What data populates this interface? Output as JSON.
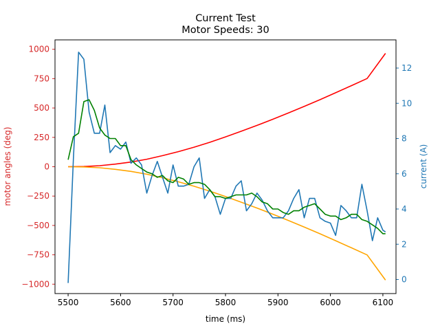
{
  "chart_data": {
    "type": "line",
    "title": "Current Test",
    "subtitle": "Motor Speeds: 30",
    "xlabel": "time (ms)",
    "ylabel_left": "motor angles (deg)",
    "ylabel_right": "current (A)",
    "xlim": [
      5475,
      6125
    ],
    "ylim_left": [
      -1080,
      1080
    ],
    "ylim_right": [
      -0.8,
      13.6
    ],
    "x_ticks": [
      5500,
      5600,
      5700,
      5800,
      5900,
      6000,
      6100
    ],
    "y_left_ticks": [
      -1000,
      -750,
      -500,
      -250,
      0,
      250,
      500,
      750,
      1000
    ],
    "y_right_ticks": [
      0,
      2,
      4,
      6,
      8,
      10,
      12
    ],
    "grid": false,
    "colors": {
      "left_axis": "#d62728",
      "right_axis": "#1f77b4",
      "angle_pos": "#ff0000",
      "angle_neg": "#ffa500",
      "current_raw": "#1f77b4",
      "current_smooth": "#008000"
    },
    "series": [
      {
        "key": "angle_pos",
        "axis": "left",
        "x": [
          5500,
          5530,
          5560,
          5590,
          5620,
          5650,
          5680,
          5710,
          5740,
          5770,
          5800,
          5830,
          5860,
          5890,
          5920,
          5950,
          5980,
          6010,
          6040,
          6070,
          6105
        ],
        "values": [
          0,
          2,
          9,
          22,
          40,
          64,
          94,
          128,
          166,
          208,
          254,
          302,
          352,
          404,
          458,
          514,
          571,
          630,
          690,
          751,
          965
        ]
      },
      {
        "key": "angle_neg",
        "axis": "left",
        "x": [
          5500,
          5530,
          5560,
          5590,
          5620,
          5650,
          5680,
          5710,
          5740,
          5770,
          5800,
          5830,
          5860,
          5890,
          5920,
          5950,
          5980,
          6010,
          6040,
          6070,
          6105
        ],
        "values": [
          0,
          -2,
          -9,
          -22,
          -40,
          -64,
          -94,
          -128,
          -166,
          -208,
          -254,
          -302,
          -352,
          -404,
          -458,
          -514,
          -571,
          -630,
          -690,
          -751,
          -965
        ]
      },
      {
        "key": "current_raw",
        "axis": "right",
        "x": [
          5500,
          5510,
          5520,
          5530,
          5540,
          5550,
          5560,
          5570,
          5580,
          5590,
          5600,
          5610,
          5620,
          5630,
          5640,
          5650,
          5660,
          5670,
          5680,
          5690,
          5700,
          5710,
          5720,
          5730,
          5740,
          5750,
          5760,
          5770,
          5780,
          5790,
          5800,
          5810,
          5820,
          5830,
          5840,
          5850,
          5860,
          5870,
          5880,
          5890,
          5900,
          5910,
          5920,
          5930,
          5940,
          5950,
          5960,
          5970,
          5980,
          5990,
          6000,
          6010,
          6020,
          6030,
          6040,
          6050,
          6060,
          6070,
          6080,
          6090,
          6100,
          6105
        ],
        "values": [
          -0.2,
          6.8,
          12.9,
          12.5,
          9.5,
          8.3,
          8.3,
          9.9,
          7.2,
          7.6,
          7.4,
          7.8,
          6.6,
          6.9,
          6.5,
          4.9,
          5.9,
          6.7,
          5.8,
          4.9,
          6.5,
          5.3,
          5.3,
          5.4,
          6.4,
          6.9,
          4.6,
          5.1,
          4.7,
          3.7,
          4.6,
          4.6,
          5.3,
          5.6,
          3.9,
          4.3,
          4.9,
          4.5,
          3.9,
          3.5,
          3.5,
          3.5,
          3.9,
          4.6,
          5.1,
          3.5,
          4.6,
          4.6,
          3.5,
          3.3,
          3.2,
          2.5,
          4.2,
          3.9,
          3.5,
          3.5,
          5.4,
          3.9,
          2.2,
          3.5,
          2.8,
          2.7
        ]
      },
      {
        "key": "current_smooth",
        "axis": "right",
        "x": [
          5500,
          5510,
          5520,
          5530,
          5540,
          5550,
          5560,
          5570,
          5580,
          5590,
          5600,
          5610,
          5620,
          5630,
          5640,
          5650,
          5660,
          5670,
          5680,
          5690,
          5700,
          5710,
          5720,
          5730,
          5740,
          5750,
          5760,
          5770,
          5780,
          5790,
          5800,
          5810,
          5820,
          5830,
          5840,
          5850,
          5860,
          5870,
          5880,
          5890,
          5900,
          5910,
          5920,
          5930,
          5940,
          5950,
          5960,
          5970,
          5980,
          5990,
          6000,
          6010,
          6020,
          6030,
          6040,
          6050,
          6060,
          6070,
          6080,
          6090,
          6100,
          6105
        ],
        "values": [
          6.8,
          8.1,
          8.3,
          10.1,
          10.2,
          9.6,
          8.6,
          8.2,
          8.0,
          8.0,
          7.6,
          7.6,
          6.8,
          6.5,
          6.3,
          6.1,
          6.0,
          5.8,
          5.9,
          5.6,
          5.5,
          5.8,
          5.7,
          5.4,
          5.5,
          5.5,
          5.4,
          5.1,
          4.7,
          4.7,
          4.6,
          4.7,
          4.8,
          4.8,
          4.8,
          4.9,
          4.7,
          4.4,
          4.3,
          4.0,
          4.0,
          3.8,
          3.7,
          3.9,
          3.9,
          4.1,
          4.2,
          4.3,
          4.0,
          3.7,
          3.6,
          3.6,
          3.4,
          3.5,
          3.7,
          3.7,
          3.4,
          3.3,
          3.1,
          2.9,
          2.6,
          2.6
        ]
      }
    ]
  }
}
